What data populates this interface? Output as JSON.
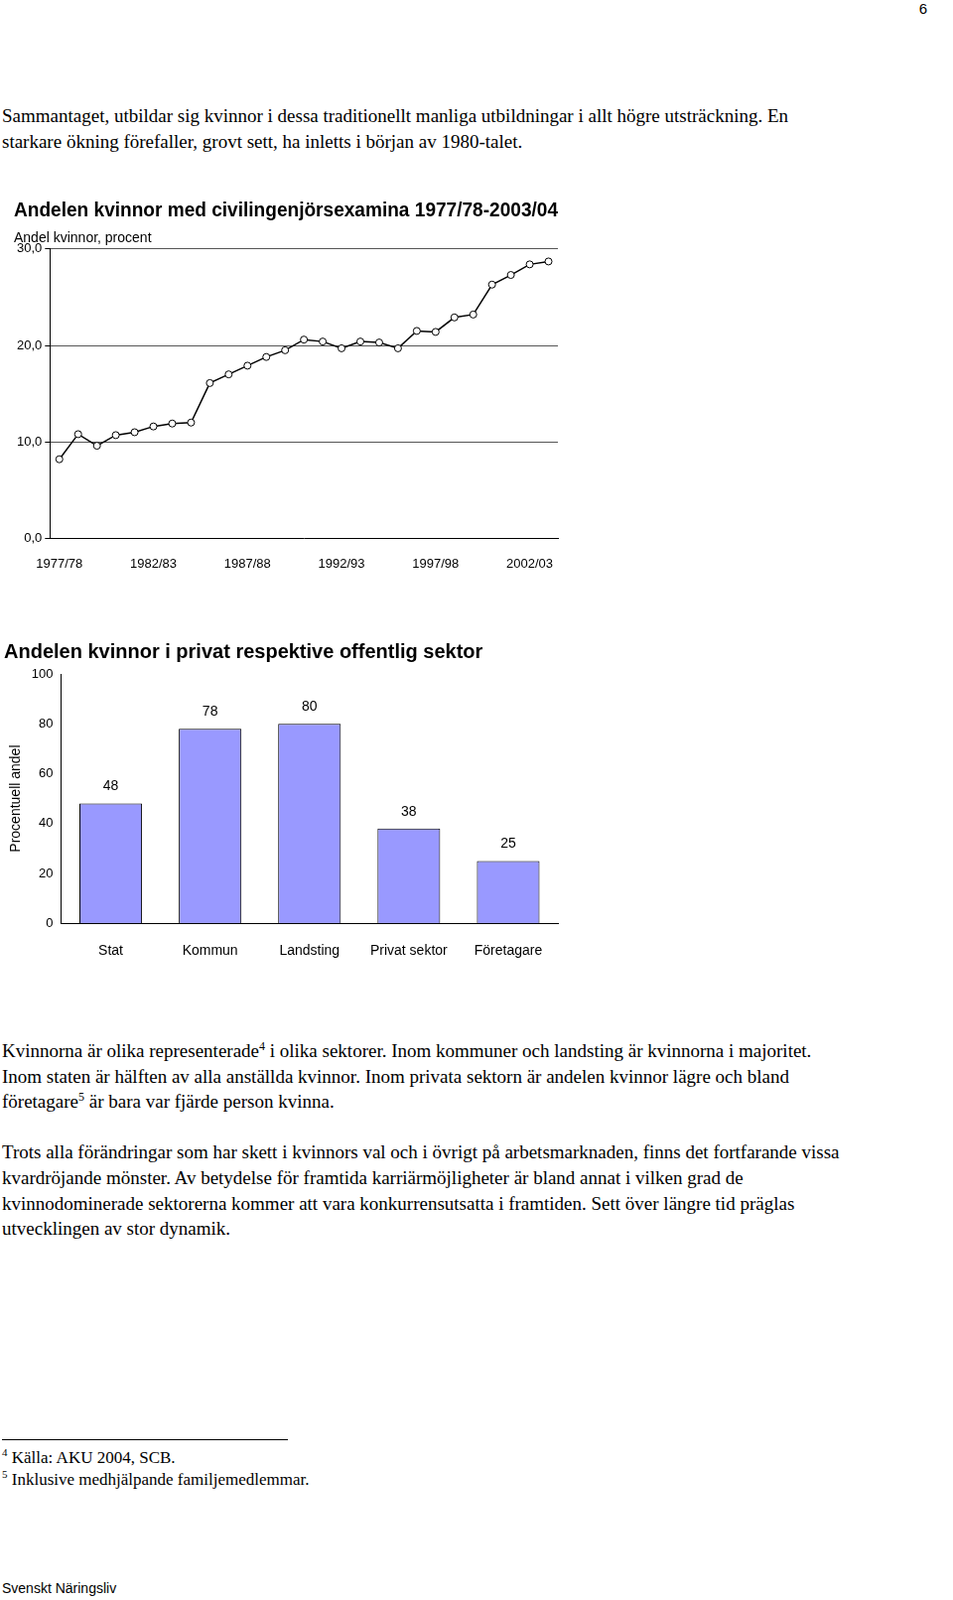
{
  "document": {
    "page_number": "6",
    "paragraphs_top": [
      [
        {
          "text": "Sammantaget, utbildar sig kvinnor i dessa traditionellt manliga utbildningar i allt högre utsträckning. En starkare ökning förefaller, grovt sett, ha inletts i början av 1980-talet."
        }
      ]
    ],
    "paragraphs_bottom": [
      [
        {
          "text": "Kvinnorna är olika representerade"
        },
        {
          "sup": "4"
        },
        {
          "text": " i olika sektorer. Inom kommuner och landsting är kvinnorna i majoritet. Inom staten är hälften av alla anställda kvinnor. Inom privata sektorn är andelen kvinnor lägre och bland företagare"
        },
        {
          "sup": "5"
        },
        {
          "text": " är bara var fjärde person kvinna."
        }
      ],
      [
        {
          "text": "Trots alla förändringar som har skett i kvinnors val och i övrigt på arbetsmarknaden, finns det fortfarande vissa kvardröjande mönster. Av betydelse för framtida karriärmöjligheter är bland annat i vilken grad de kvinnodominerade sektorerna kommer att vara konkurrensutsatta i framtiden. Sett över längre tid präglas utvecklingen av stor dynamik."
        }
      ]
    ],
    "footnotes": [
      {
        "mark": "4",
        "text": "Källa: AKU 2004, SCB."
      },
      {
        "mark": "5",
        "text": "Inklusive medhjälpande familjemedlemmar."
      }
    ],
    "footer": "Svenskt Näringsliv"
  },
  "chart_data": [
    {
      "type": "line",
      "title": "Andelen kvinnor med civilingenjörsexamina 1977/78-2003/04",
      "ylabel": "Andel kvinnor, procent",
      "categories": [
        "1977/78",
        null,
        null,
        null,
        null,
        "1982/83",
        null,
        null,
        null,
        null,
        "1987/88",
        null,
        null,
        null,
        null,
        "1992/93",
        null,
        null,
        null,
        null,
        "1997/98",
        null,
        null,
        null,
        null,
        "2002/03",
        null
      ],
      "values": [
        8.2,
        10.8,
        9.6,
        10.7,
        11.0,
        11.6,
        11.9,
        12.0,
        16.1,
        17.0,
        17.9,
        18.8,
        19.5,
        20.6,
        20.4,
        19.7,
        20.4,
        20.3,
        19.7,
        21.5,
        21.4,
        22.9,
        23.2,
        26.3,
        27.3,
        28.4,
        28.7
      ],
      "color": "#000000",
      "marker": "circle",
      "ylim": [
        0,
        30
      ],
      "yticks": [
        {
          "value": 0,
          "label": "0,0"
        },
        {
          "value": 10,
          "label": "10,0"
        },
        {
          "value": 20,
          "label": "20,0"
        },
        {
          "value": 30,
          "label": "30,0"
        }
      ],
      "grid": true
    },
    {
      "type": "bar",
      "title": "Andelen kvinnor i privat respektive offentlig sektor",
      "ylabel": "Procentuell andel",
      "categories": [
        "Stat",
        "Kommun",
        "Landsting",
        "Privat sektor",
        "Företagare"
      ],
      "values": [
        48,
        78,
        80,
        38,
        25
      ],
      "color": "#9999ff",
      "ylim": [
        0,
        100
      ],
      "yticks": [
        0,
        20,
        40,
        60,
        80,
        100
      ],
      "grid": false,
      "data_labels": true
    }
  ]
}
